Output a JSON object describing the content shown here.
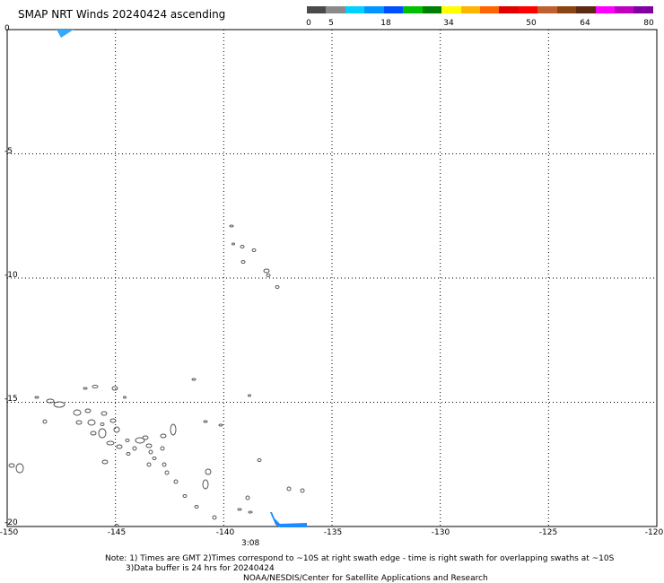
{
  "title": "SMAP NRT Winds 20240424 ascending",
  "colorbar": {
    "labels": [
      "0",
      "5",
      "18",
      "34",
      "50",
      "64",
      "80"
    ],
    "colors": [
      "#4a4a4a",
      "#8a8a8a",
      "#00d2ff",
      "#0096ff",
      "#0050ff",
      "#00c000",
      "#008000",
      "#ffff00",
      "#ffb400",
      "#ff6400",
      "#e00000",
      "#ff0000",
      "#c06030",
      "#8b4513",
      "#5c2a10",
      "#ff00ff",
      "#c000c0",
      "#8000a0"
    ]
  },
  "axes": {
    "y_labels": [
      "0",
      "-5",
      "-10",
      "-15",
      "-20"
    ],
    "x_labels": [
      "-150",
      "-145",
      "-140",
      "-135",
      "-130",
      "-125",
      "-120"
    ]
  },
  "time_label": "3:08",
  "notes": {
    "line1": "Note: 1) Times are GMT 2)Times correspond to ~10S at right swath edge - time is right swath for overlapping swaths at ~10S",
    "line2": "3)Data buffer is 24 hrs for 20240424",
    "line3": "NOAA/NESDIS/Center for Satellite Applications and Research"
  },
  "map": {
    "lon_range": [
      -150,
      -120
    ],
    "lat_range": [
      -20,
      0
    ],
    "land_color": "#555555",
    "swath_color": "#1a8cff",
    "swath_color_light": "#33aaff"
  }
}
